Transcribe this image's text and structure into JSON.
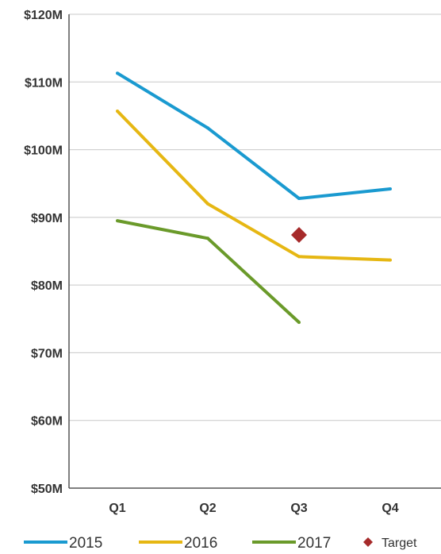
{
  "chart_data": {
    "type": "line",
    "categories": [
      "Q1",
      "Q2",
      "Q3",
      "Q4"
    ],
    "series": [
      {
        "name": "2015",
        "values": [
          111.3,
          103.2,
          92.8,
          94.2
        ],
        "color": "#1a9ad0"
      },
      {
        "name": "2016",
        "values": [
          105.7,
          92.0,
          84.2,
          83.7
        ],
        "color": "#e6b713"
      },
      {
        "name": "2017",
        "values": [
          89.5,
          86.9,
          74.5,
          null
        ],
        "color": "#6a9a2a"
      }
    ],
    "target": {
      "name": "Target",
      "category": "Q3",
      "value": 87.4,
      "color": "#a62a2a"
    },
    "y_ticks": [
      "$50M",
      "$60M",
      "$70M",
      "$80M",
      "$90M",
      "$100M",
      "$110M",
      "$120M"
    ],
    "ylim": [
      50,
      120
    ],
    "y_step": 10,
    "grid": true,
    "legend_position": "bottom",
    "title": "",
    "xlabel": "",
    "ylabel": ""
  }
}
